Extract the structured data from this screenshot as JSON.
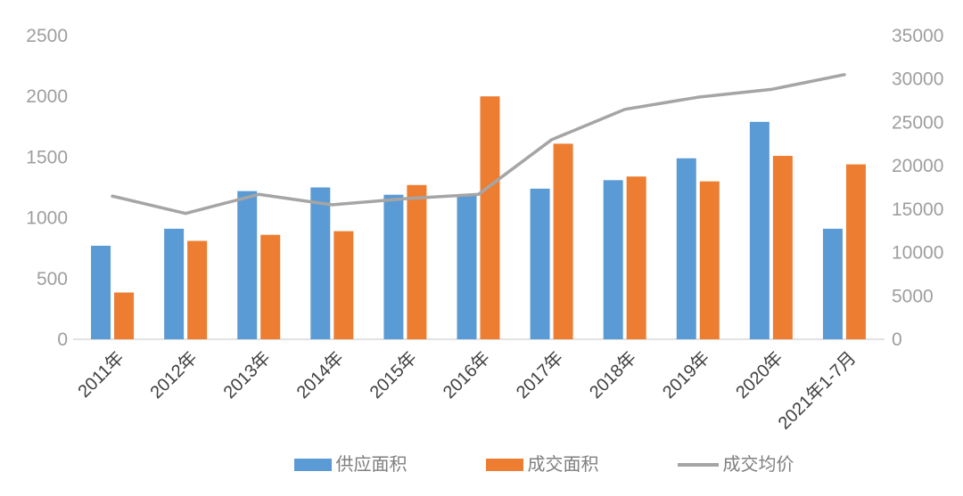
{
  "chart_data": {
    "type": "combo",
    "categories": [
      "2011年",
      "2012年",
      "2013年",
      "2014年",
      "2015年",
      "2016年",
      "2017年",
      "2018年",
      "2019年",
      "2020年",
      "2021年1-7月"
    ],
    "series": [
      {
        "name": "供应面积",
        "type": "bar",
        "axis": "left",
        "color": "#5B9BD5",
        "values": [
          770,
          910,
          1220,
          1250,
          1190,
          1190,
          1240,
          1310,
          1490,
          1790,
          910
        ]
      },
      {
        "name": "成交面积",
        "type": "bar",
        "axis": "left",
        "color": "#ED7D31",
        "values": [
          385,
          810,
          860,
          890,
          1270,
          2000,
          1610,
          1340,
          1300,
          1510,
          1440
        ]
      },
      {
        "name": "成交均价",
        "type": "line",
        "axis": "right",
        "color": "#A5A5A5",
        "values": [
          16500,
          14500,
          16700,
          15500,
          16200,
          16700,
          23000,
          26500,
          27900,
          28800,
          30500
        ]
      }
    ],
    "left_axis": {
      "min": 0,
      "max": 2500,
      "ticks": [
        0,
        500,
        1000,
        1500,
        2000,
        2500
      ]
    },
    "right_axis": {
      "min": 0,
      "max": 35000,
      "ticks": [
        0,
        5000,
        10000,
        15000,
        20000,
        25000,
        30000,
        35000
      ]
    },
    "legend": {
      "position": "bottom"
    },
    "grid": false
  },
  "colors": {
    "background": "#FFFFFF",
    "axis_line": "#D9D9D9",
    "left_tick_text": "#9E9E9E",
    "right_tick_text": "#9E9E9E",
    "x_label_text": "#3F3F3F",
    "legend_text": "#7F7F7F"
  }
}
